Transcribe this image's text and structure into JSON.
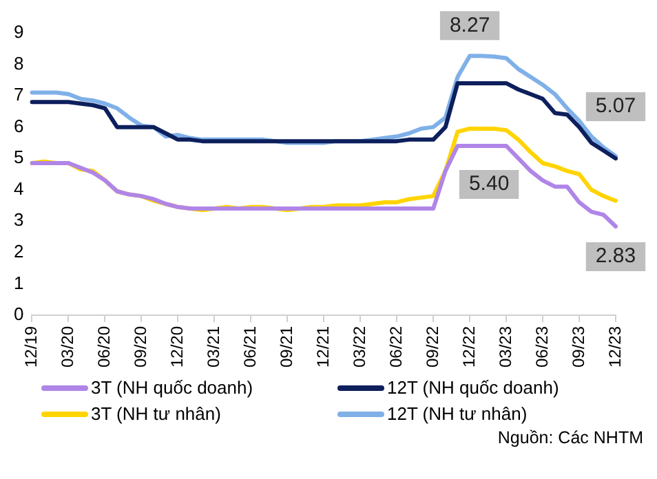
{
  "chart_data": {
    "type": "line",
    "categories": [
      "12/19",
      null,
      null,
      "03/20",
      null,
      null,
      "06/20",
      null,
      null,
      "09/20",
      null,
      null,
      "12/20",
      null,
      null,
      "03/21",
      null,
      null,
      "06/21",
      null,
      null,
      "09/21",
      null,
      null,
      "12/21",
      null,
      null,
      "03/22",
      null,
      null,
      "06/22",
      null,
      null,
      "09/22",
      null,
      null,
      "12/22",
      null,
      null,
      "03/23",
      null,
      null,
      "06/23",
      null,
      null,
      "09/23",
      null,
      null,
      "12/23"
    ],
    "ylim": [
      0,
      9
    ],
    "yticks": [
      0,
      1,
      2,
      3,
      4,
      5,
      6,
      7,
      8,
      9
    ],
    "grid": false,
    "legend": "bottom",
    "marker": "none",
    "line_style": "solid",
    "series": [
      {
        "name": "3T (NH quốc doanh)",
        "color": "#b085e8",
        "values": [
          4.85,
          4.85,
          4.85,
          4.85,
          4.7,
          4.55,
          4.3,
          3.95,
          3.85,
          3.8,
          3.7,
          3.55,
          3.45,
          3.4,
          3.4,
          3.4,
          3.4,
          3.4,
          3.4,
          3.4,
          3.4,
          3.4,
          3.4,
          3.4,
          3.4,
          3.4,
          3.4,
          3.4,
          3.4,
          3.4,
          3.4,
          3.4,
          3.4,
          3.4,
          4.6,
          5.4,
          5.4,
          5.4,
          5.4,
          5.4,
          5.0,
          4.6,
          4.3,
          4.1,
          4.1,
          3.6,
          3.3,
          3.2,
          2.83
        ]
      },
      {
        "name": "12T (NH quốc doanh)",
        "color": "#0d1f5c",
        "values": [
          6.8,
          6.8,
          6.8,
          6.8,
          6.75,
          6.7,
          6.6,
          6.0,
          6.0,
          6.0,
          6.0,
          5.8,
          5.6,
          5.6,
          5.55,
          5.55,
          5.55,
          5.55,
          5.55,
          5.55,
          5.55,
          5.55,
          5.55,
          5.55,
          5.55,
          5.55,
          5.55,
          5.55,
          5.55,
          5.55,
          5.55,
          5.6,
          5.6,
          5.6,
          6.0,
          7.4,
          7.4,
          7.4,
          7.4,
          7.4,
          7.2,
          7.05,
          6.9,
          6.45,
          6.4,
          6.0,
          5.5,
          5.25,
          5.0
        ]
      },
      {
        "name": "3T (NH tư nhân)",
        "color": "#ffd400",
        "values": [
          4.85,
          4.9,
          4.85,
          4.85,
          4.65,
          4.6,
          4.3,
          3.95,
          3.85,
          3.8,
          3.65,
          3.55,
          3.45,
          3.4,
          3.35,
          3.4,
          3.45,
          3.4,
          3.45,
          3.45,
          3.4,
          3.35,
          3.4,
          3.45,
          3.45,
          3.5,
          3.5,
          3.5,
          3.55,
          3.6,
          3.6,
          3.7,
          3.75,
          3.8,
          4.6,
          5.85,
          5.95,
          5.95,
          5.95,
          5.9,
          5.6,
          5.2,
          4.85,
          4.75,
          4.6,
          4.5,
          4.0,
          3.8,
          3.65
        ]
      },
      {
        "name": "12T (NH tư nhân)",
        "color": "#7fb0e8",
        "values": [
          7.1,
          7.1,
          7.1,
          7.05,
          6.9,
          6.85,
          6.75,
          6.6,
          6.3,
          6.05,
          6.0,
          5.7,
          5.75,
          5.65,
          5.6,
          5.6,
          5.6,
          5.6,
          5.6,
          5.6,
          5.55,
          5.5,
          5.5,
          5.5,
          5.5,
          5.55,
          5.55,
          5.55,
          5.6,
          5.65,
          5.7,
          5.8,
          5.95,
          6.0,
          6.3,
          7.6,
          8.27,
          8.27,
          8.25,
          8.2,
          7.85,
          7.6,
          7.35,
          7.05,
          6.6,
          6.2,
          5.7,
          5.35,
          5.07
        ]
      }
    ],
    "annotations": [
      {
        "text": "8.27",
        "x": "12/22",
        "y": 8.27
      },
      {
        "text": "5.40",
        "x": "12/22",
        "y": 5.4
      },
      {
        "text": "5.07",
        "x": "12/23",
        "y": 5.07
      },
      {
        "text": "2.83",
        "x": "12/23",
        "y": 2.83
      },
      "Nguồn: Các NHTM"
    ]
  }
}
